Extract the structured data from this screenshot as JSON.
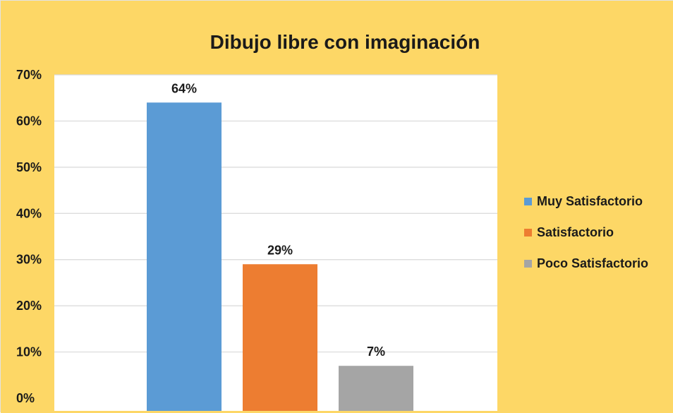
{
  "colors": {
    "background": "#FDD766",
    "plot_area": "#FFFFFF",
    "gridline": "#D9D9D9",
    "text": "#1A1A1A"
  },
  "chart_data": {
    "type": "bar",
    "title": "Dibujo libre con imaginación",
    "xlabel": "",
    "ylabel": "",
    "ylim": [
      0,
      70
    ],
    "y_ticks": [
      {
        "value": 0,
        "label": "0%"
      },
      {
        "value": 10,
        "label": "10%"
      },
      {
        "value": 20,
        "label": "20%"
      },
      {
        "value": 30,
        "label": "30%"
      },
      {
        "value": 40,
        "label": "40%"
      },
      {
        "value": 50,
        "label": "50%"
      },
      {
        "value": 60,
        "label": "60%"
      },
      {
        "value": 70,
        "label": "70%"
      }
    ],
    "grid": true,
    "legend_position": "right",
    "series": [
      {
        "name": "Muy Satisfactorio",
        "value": 64,
        "label": "64%",
        "color": "#5B9BD5"
      },
      {
        "name": "Satisfactorio",
        "value": 29,
        "label": "29%",
        "color": "#ED7D31"
      },
      {
        "name": "Poco Satisfactorio",
        "value": 7,
        "label": "7%",
        "color": "#A5A5A5"
      }
    ]
  }
}
